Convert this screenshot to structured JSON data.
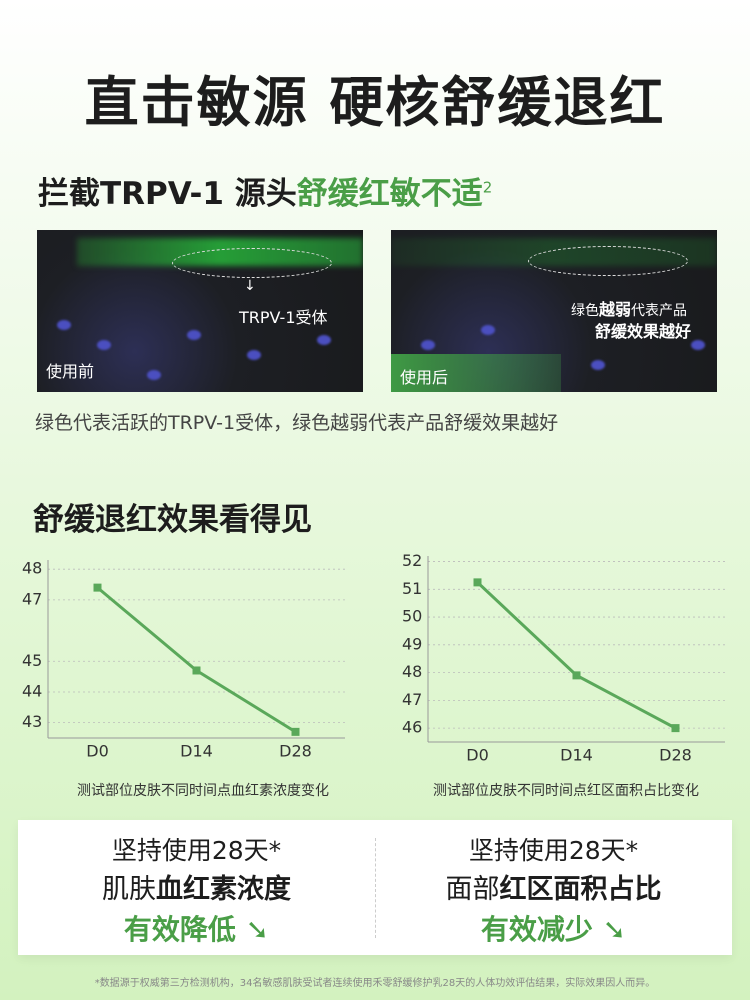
{
  "header": {
    "title": "直击敏源 硬核舒缓退红",
    "subtitle": {
      "black": "拦截TRPV-1 源头",
      "green": "舒缓红敏不适",
      "sup": "2"
    }
  },
  "images": {
    "before": {
      "label": "使用前",
      "annotation": "TRPV-1受体"
    },
    "after": {
      "label": "使用后",
      "note_a": "绿色",
      "note_b": "越弱",
      "note_c": "代表产品",
      "note_d": "舒缓效果",
      "note_e": "越好"
    },
    "caption": "绿色代表活跃的TRPV-1受体，绿色越弱代表产品舒缓效果越好"
  },
  "section_title": "舒缓退红效果看得见",
  "chart_data": [
    {
      "type": "line",
      "categories": [
        "D0",
        "D14",
        "D28"
      ],
      "values": [
        47.4,
        44.7,
        42.7
      ],
      "color": "#5aa85a",
      "ylim": [
        42.5,
        48.3
      ],
      "yticks": [
        43,
        44,
        45,
        47,
        48
      ],
      "grid": true,
      "caption": "测试部位皮肤不同时间点血红素浓度变化"
    },
    {
      "type": "line",
      "categories": [
        "D0",
        "D14",
        "D28"
      ],
      "values": [
        51.25,
        47.9,
        46.0
      ],
      "color": "#5aa85a",
      "ylim": [
        45.5,
        52.2
      ],
      "yticks": [
        46,
        47,
        48,
        49,
        50,
        51,
        52
      ],
      "grid": true,
      "caption": "测试部位皮肤不同时间点红区面积占比变化"
    }
  ],
  "summary": [
    {
      "line1": "坚持使用28天*",
      "line2a": "肌肤",
      "line2b": "血红素浓度",
      "line3": "有效降低"
    },
    {
      "line1": "坚持使用28天*",
      "line2a": "面部",
      "line2b": "红区面积占比",
      "line3": "有效减少"
    }
  ],
  "footnote": "*数据源于权威第三方检测机构，34名敏感肌肤受试者连续使用禾零舒缓修护乳28天的人体功效评估结果，实际效果因人而异。"
}
